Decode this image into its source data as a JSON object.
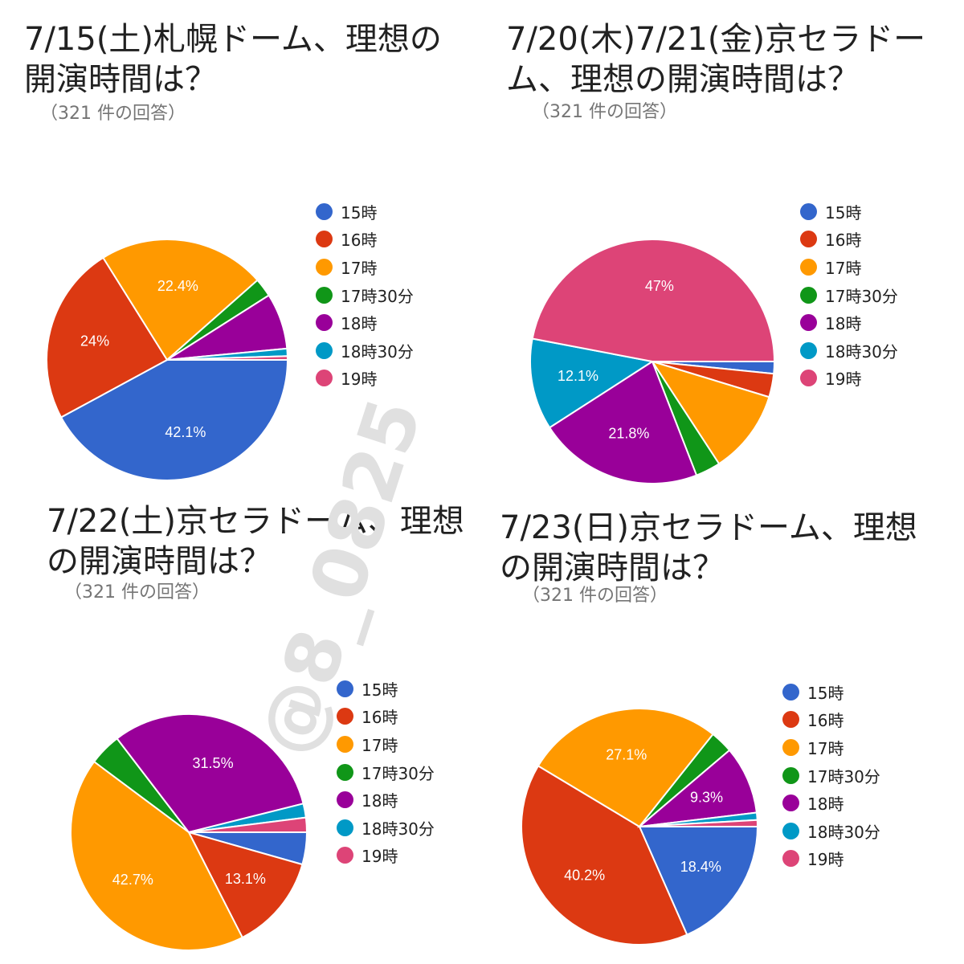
{
  "legend_items": [
    "15時",
    "16時",
    "17時",
    "17時30分",
    "18時",
    "18時30分",
    "19時"
  ],
  "colors": [
    "#3366cc",
    "#dc3912",
    "#ff9900",
    "#109618",
    "#990099",
    "#0099c6",
    "#dd4477"
  ],
  "watermark": "@8_0825",
  "chart_data": [
    {
      "type": "pie",
      "title": "7/15(土)札幌ドーム、理想の開演時間は？",
      "subtitle": "（321 件の回答）",
      "categories": [
        "15時",
        "16時",
        "17時",
        "17時30分",
        "18時",
        "18時30分",
        "19時"
      ],
      "values": [
        42.1,
        24,
        22.4,
        2.5,
        7.5,
        1.0,
        0.5
      ],
      "labels": [
        "42.1%",
        "24%",
        "22.4%",
        "",
        "",
        "",
        ""
      ],
      "legend": "right"
    },
    {
      "type": "pie",
      "title": "7/20(木)7/21(金)京セラドーム、理想の開演時間は？",
      "subtitle": "（321 件の回答）",
      "categories": [
        "15時",
        "16時",
        "17時",
        "17時30分",
        "18時",
        "18時30分",
        "19時"
      ],
      "values": [
        1.6,
        3.1,
        11.1,
        3.3,
        21.8,
        12.1,
        47
      ],
      "labels": [
        "",
        "",
        "",
        "",
        "21.8%",
        "12.1%",
        "47%"
      ],
      "legend": "right"
    },
    {
      "type": "pie",
      "title": "7/22(土)京セラドーム、理想の開演時間は？",
      "subtitle": "（321 件の回答）",
      "categories": [
        "15時",
        "16時",
        "17時",
        "17時30分",
        "18時",
        "18時30分",
        "19時"
      ],
      "values": [
        4.4,
        13.1,
        42.7,
        4.4,
        31.5,
        1.9,
        2.0
      ],
      "labels": [
        "",
        "13.1%",
        "42.7%",
        "",
        "31.5%",
        "",
        ""
      ],
      "legend": "right"
    },
    {
      "type": "pie",
      "title": "7/23(日)京セラドーム、理想の開演時間は？",
      "subtitle": "（321 件の回答）",
      "categories": [
        "15時",
        "16時",
        "17時",
        "17時30分",
        "18時",
        "18時30分",
        "19時"
      ],
      "values": [
        18.4,
        40.2,
        27.1,
        3.1,
        9.3,
        1.0,
        0.9
      ],
      "labels": [
        "18.4%",
        "40.2%",
        "27.1%",
        "",
        "9.3%",
        "",
        ""
      ],
      "legend": "right"
    }
  ]
}
